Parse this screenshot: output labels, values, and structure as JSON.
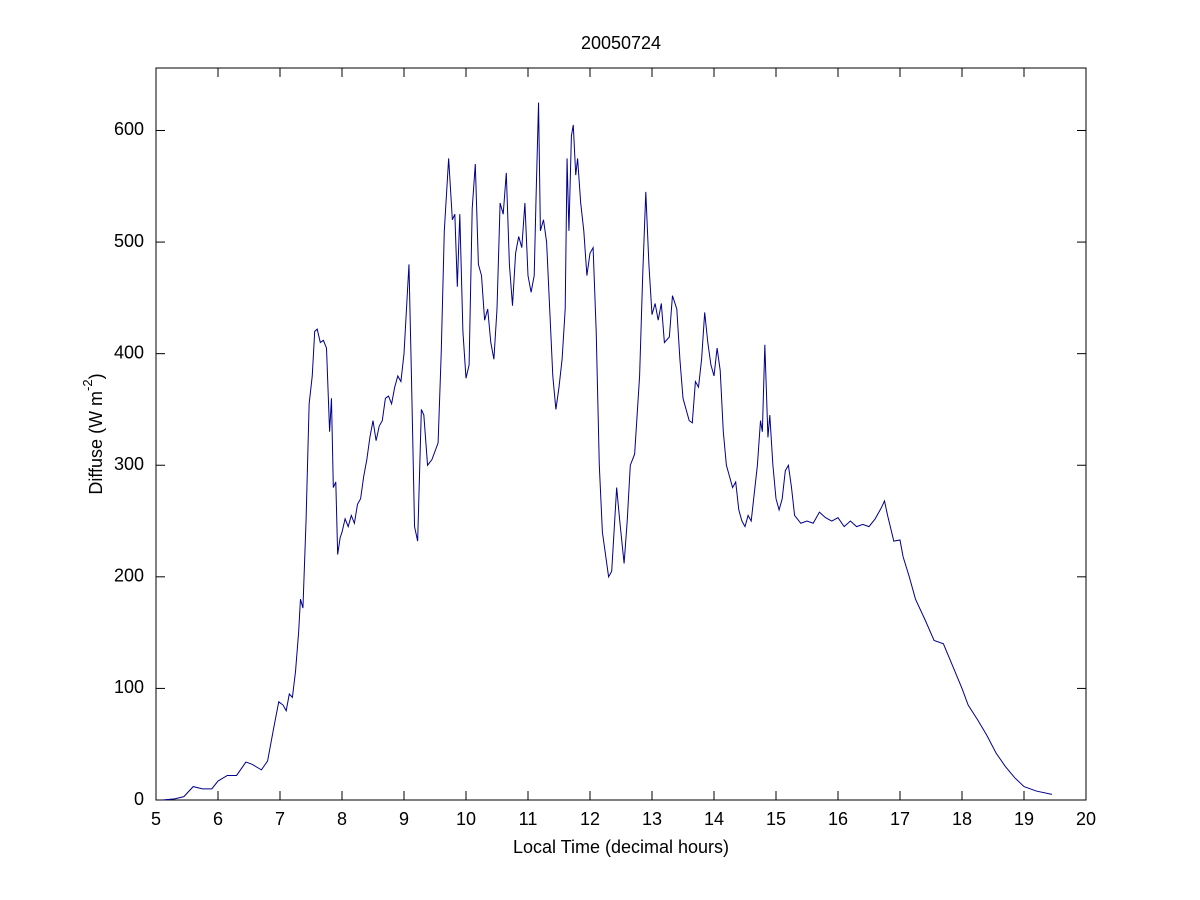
{
  "chart_data": {
    "type": "line",
    "title": "20050724",
    "xlabel": "Local Time (decimal hours)",
    "ylabel": [
      "Diffuse (W m",
      "-2",
      ")"
    ],
    "xlim": [
      5,
      20
    ],
    "ylim": [
      0,
      656
    ],
    "xticks": [
      5,
      6,
      7,
      8,
      9,
      10,
      11,
      12,
      13,
      14,
      15,
      16,
      17,
      18,
      19,
      20
    ],
    "yticks": [
      0,
      100,
      200,
      300,
      400,
      500,
      600
    ],
    "color": "#00008b",
    "x": [
      5.1,
      5.3,
      5.45,
      5.6,
      5.75,
      5.9,
      6.0,
      6.15,
      6.3,
      6.45,
      6.55,
      6.7,
      6.8,
      6.9,
      6.98,
      7.05,
      7.1,
      7.15,
      7.2,
      7.25,
      7.3,
      7.33,
      7.37,
      7.42,
      7.47,
      7.52,
      7.56,
      7.6,
      7.65,
      7.7,
      7.75,
      7.8,
      7.83,
      7.86,
      7.9,
      7.93,
      7.97,
      8.0,
      8.05,
      8.1,
      8.15,
      8.2,
      8.25,
      8.3,
      8.35,
      8.4,
      8.45,
      8.5,
      8.55,
      8.6,
      8.65,
      8.7,
      8.75,
      8.8,
      8.85,
      8.9,
      8.95,
      9.0,
      9.05,
      9.08,
      9.12,
      9.17,
      9.22,
      9.28,
      9.32,
      9.38,
      9.45,
      9.55,
      9.6,
      9.65,
      9.72,
      9.78,
      9.82,
      9.86,
      9.9,
      9.95,
      10.0,
      10.05,
      10.1,
      10.15,
      10.2,
      10.25,
      10.3,
      10.35,
      10.4,
      10.45,
      10.5,
      10.55,
      10.6,
      10.65,
      10.7,
      10.75,
      10.8,
      10.85,
      10.9,
      10.95,
      11.0,
      11.05,
      11.1,
      11.13,
      11.17,
      11.2,
      11.25,
      11.3,
      11.35,
      11.4,
      11.45,
      11.5,
      11.55,
      11.6,
      11.63,
      11.66,
      11.7,
      11.73,
      11.77,
      11.8,
      11.85,
      11.9,
      11.95,
      12.0,
      12.05,
      12.1,
      12.15,
      12.2,
      12.3,
      12.35,
      12.43,
      12.48,
      12.55,
      12.6,
      12.65,
      12.72,
      12.8,
      12.85,
      12.9,
      12.95,
      13.0,
      13.05,
      13.1,
      13.15,
      13.2,
      13.28,
      13.33,
      13.4,
      13.45,
      13.5,
      13.55,
      13.6,
      13.65,
      13.7,
      13.75,
      13.8,
      13.85,
      13.9,
      13.95,
      14.0,
      14.05,
      14.1,
      14.15,
      14.2,
      14.25,
      14.3,
      14.35,
      14.4,
      14.45,
      14.5,
      14.55,
      14.6,
      14.7,
      14.75,
      14.78,
      14.82,
      14.87,
      14.9,
      14.95,
      15.0,
      15.05,
      15.1,
      15.15,
      15.2,
      15.25,
      15.3,
      15.4,
      15.5,
      15.6,
      15.7,
      15.8,
      15.9,
      16.0,
      16.1,
      16.2,
      16.3,
      16.4,
      16.5,
      16.6,
      16.7,
      16.75,
      16.8,
      16.9,
      17.0,
      17.05,
      17.15,
      17.25,
      17.4,
      17.55,
      17.7,
      17.85,
      18.0,
      18.1,
      18.25,
      18.4,
      18.55,
      18.7,
      18.85,
      19.0,
      19.2,
      19.45
    ],
    "values": [
      0,
      1,
      3,
      12,
      10,
      10,
      17,
      22,
      22,
      34,
      32,
      27,
      35,
      65,
      88,
      85,
      80,
      95,
      92,
      115,
      150,
      180,
      172,
      250,
      355,
      380,
      420,
      422,
      410,
      412,
      405,
      330,
      360,
      280,
      285,
      220,
      235,
      240,
      252,
      245,
      255,
      248,
      265,
      270,
      290,
      305,
      325,
      340,
      322,
      335,
      340,
      360,
      362,
      355,
      370,
      380,
      375,
      400,
      450,
      480,
      380,
      245,
      232,
      350,
      345,
      300,
      305,
      320,
      400,
      510,
      575,
      520,
      525,
      460,
      525,
      420,
      378,
      390,
      530,
      570,
      480,
      470,
      430,
      440,
      410,
      395,
      440,
      535,
      525,
      562,
      480,
      443,
      490,
      505,
      495,
      535,
      470,
      455,
      470,
      540,
      625,
      510,
      520,
      500,
      440,
      380,
      350,
      370,
      395,
      440,
      575,
      510,
      595,
      605,
      560,
      575,
      535,
      510,
      470,
      490,
      495,
      420,
      300,
      240,
      200,
      205,
      280,
      250,
      212,
      250,
      300,
      310,
      380,
      470,
      545,
      480,
      435,
      445,
      430,
      445,
      410,
      415,
      452,
      440,
      395,
      360,
      350,
      340,
      338,
      375,
      370,
      395,
      437,
      410,
      390,
      380,
      405,
      385,
      330,
      300,
      290,
      280,
      285,
      260,
      250,
      245,
      255,
      250,
      300,
      340,
      330,
      408,
      325,
      345,
      300,
      270,
      260,
      270,
      295,
      300,
      280,
      255,
      248,
      250,
      248,
      258,
      253,
      250,
      253,
      245,
      250,
      245,
      247,
      245,
      252,
      262,
      268,
      255,
      232,
      233,
      218,
      200,
      180,
      162,
      143,
      140,
      120,
      100,
      85,
      72,
      58,
      42,
      30,
      20,
      12,
      8,
      5
    ]
  }
}
